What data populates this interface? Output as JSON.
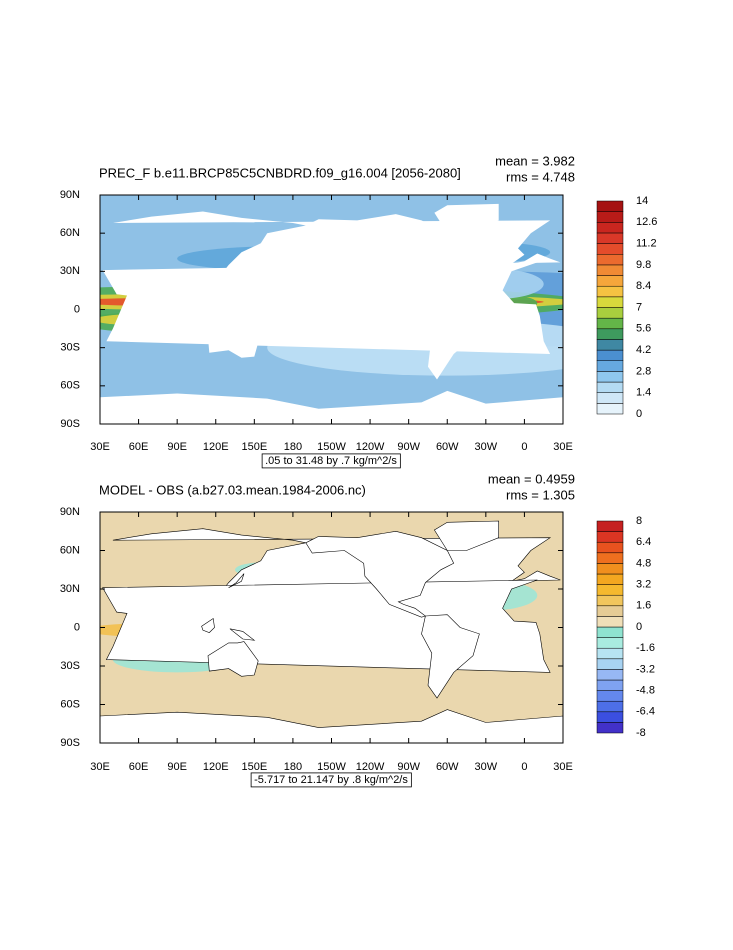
{
  "panels": [
    {
      "title": "PREC_F b.e11.BRCP85C5CNBDRD.f09_g16.004 [2056-2080]",
      "mean": "mean = 3.982",
      "rms": "rms = 4.748",
      "range_label": ".05 to 31.48 by .7 kg/m^2/s",
      "lat_labels": [
        "90N",
        "60N",
        "30N",
        "0",
        "30S",
        "60S",
        "90S"
      ],
      "lon_labels": [
        "30E",
        "60E",
        "90E",
        "120E",
        "150E",
        "180",
        "150W",
        "120W",
        "90W",
        "60W",
        "30W",
        "0",
        "30E"
      ],
      "colorbar_labels": [
        "14",
        "12.6",
        "11.2",
        "9.8",
        "8.4",
        "7",
        "5.6",
        "4.2",
        "2.8",
        "1.4",
        "0"
      ]
    },
    {
      "title": "MODEL - OBS (a.b27.03.mean.1984-2006.nc)",
      "mean": "mean = 0.4959",
      "rms": "rms = 1.305",
      "range_label": "-5.717 to 21.147 by .8 kg/m^2/s",
      "lat_labels": [
        "90N",
        "60N",
        "30N",
        "0",
        "30S",
        "60S",
        "90S"
      ],
      "lon_labels": [
        "30E",
        "60E",
        "90E",
        "120E",
        "150E",
        "180",
        "150W",
        "120W",
        "90W",
        "60W",
        "30W",
        "0",
        "30E"
      ],
      "colorbar_labels": [
        "8",
        "6.4",
        "4.8",
        "3.2",
        "1.6",
        "0",
        "-1.6",
        "-3.2",
        "-4.8",
        "-6.4",
        "-8"
      ]
    }
  ]
}
